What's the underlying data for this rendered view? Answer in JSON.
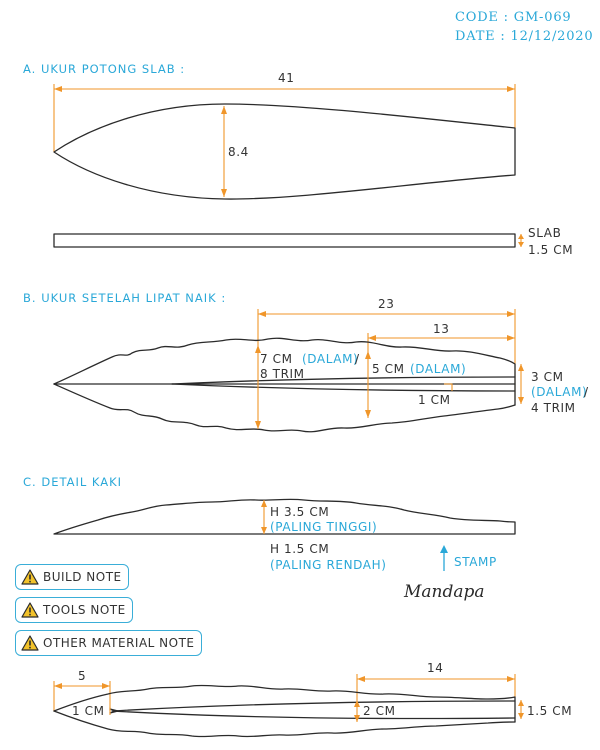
{
  "header": {
    "code": "CODE : GM-069",
    "date": "DATE : 12/12/2020"
  },
  "section_a": {
    "title": "A. UKUR POTONG SLAB :",
    "length": "41",
    "width": "8.4",
    "slab_label_1": "SLAB",
    "slab_label_2": "1.5 CM"
  },
  "section_b": {
    "title": "B. UKUR SETELAH LIPAT NAIK :",
    "dim_23": "23",
    "dim_13": "13",
    "left_1": "7 CM",
    "left_1_note": "(DALAM)",
    "left_1_slash": "/",
    "left_2": "8 TRIM",
    "mid_1": "5 CM",
    "mid_1_note": "(DALAM)",
    "mid_2": "1 CM",
    "right_1": "3 CM",
    "right_2_note": "(DALAM)",
    "right_2_slash": "/",
    "right_3": "4 TRIM"
  },
  "section_c": {
    "title": "C. DETAIL KAKI",
    "high": "H 3.5 CM",
    "high_note": "(PALING TINGGI)",
    "low": "H 1.5 CM",
    "low_note": "(PALING RENDAH)",
    "stamp": "STAMP",
    "logo": "Mandapa"
  },
  "notes": {
    "build": "BUILD NOTE",
    "tools": "TOOLS NOTE",
    "material": "OTHER MATERIAL NOTE"
  },
  "section_d": {
    "dim_5": "5",
    "dim_14": "14",
    "left": "1 CM",
    "mid": "2 CM",
    "right": "1.5 CM"
  },
  "colors": {
    "accent": "#2aa8d8",
    "dimension": "#f0962a",
    "ink": "#2b2b2b"
  }
}
